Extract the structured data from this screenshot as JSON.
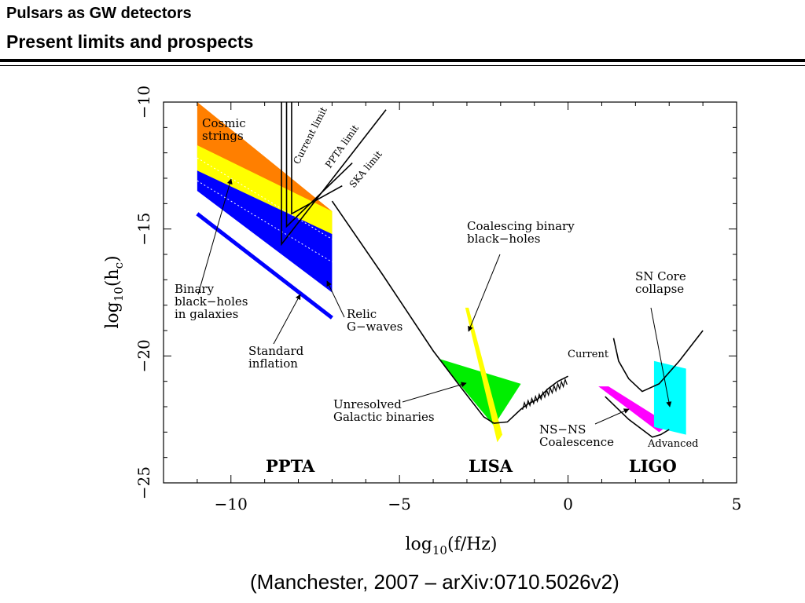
{
  "header": {
    "line1": "Pulsars as GW detectors",
    "line2": "Present limits and prospects"
  },
  "citation": "(Manchester, 2007 – arXiv:0710.5026v2)",
  "chart_data": {
    "type": "area",
    "xlabel": "log10(f/Hz)",
    "ylabel": "log10(hc)",
    "xlim": [
      -12,
      5
    ],
    "ylim": [
      -25,
      -10
    ],
    "x_ticks": [
      -10,
      -5,
      0,
      5
    ],
    "x_tick_labels": [
      "−10",
      "−5",
      "0",
      "5"
    ],
    "y_ticks": [
      -10,
      -15,
      -20,
      -25
    ],
    "y_tick_labels": [
      "−10",
      "−15",
      "−20",
      "−25"
    ],
    "grid": false,
    "colors": {
      "cosmic_strings": "#ff7f00",
      "relic_gwaves": "#ffff00",
      "binary_bh_galaxies": "#0000ff",
      "standard_inflation": "#0000ff",
      "lisa_galactic": "#00ee00",
      "coalescing_bbh": "#ffff00",
      "ns_ns": "#ff00ff",
      "sn_core": "#00ffff"
    },
    "regions": [
      {
        "name": "Cosmic strings",
        "color": "#ff7f00",
        "polygon": [
          [
            -11,
            -10
          ],
          [
            -7,
            -14.3
          ],
          [
            -7,
            -15.4
          ],
          [
            -11,
            -12.2
          ]
        ]
      },
      {
        "name": "Relic G-waves",
        "color": "#ffff00",
        "polygon": [
          [
            -11,
            -11.7
          ],
          [
            -7,
            -14.3
          ],
          [
            -7,
            -15.4
          ],
          [
            -11,
            -13.1
          ]
        ]
      },
      {
        "name": "Binary black-holes in galaxies",
        "color": "#0000ff",
        "polygon": [
          [
            -11,
            -12.7
          ],
          [
            -7,
            -15.2
          ],
          [
            -7,
            -17.5
          ],
          [
            -11,
            -13.5
          ]
        ]
      },
      {
        "name": "Unresolved Galactic binaries",
        "color": "#00ee00",
        "polygon": [
          [
            -3.85,
            -20.1
          ],
          [
            -1.4,
            -21.1
          ],
          [
            -2.2,
            -22.75
          ]
        ]
      },
      {
        "name": "Coalescing binary black-holes",
        "color": "#ffff00",
        "polygon": [
          [
            -3.05,
            -18.1
          ],
          [
            -2.95,
            -18.1
          ],
          [
            -1.95,
            -23.1
          ],
          [
            -2.1,
            -23.4
          ]
        ]
      },
      {
        "name": "NS-NS Coalescence",
        "color": "#ff00ff",
        "polygon": [
          [
            0.9,
            -21.2
          ],
          [
            1.2,
            -21.2
          ],
          [
            3.0,
            -22.7
          ],
          [
            2.7,
            -23.0
          ]
        ]
      },
      {
        "name": "SN Core collapse",
        "color": "#00ffff",
        "polygon": [
          [
            2.55,
            -20.2
          ],
          [
            3.5,
            -20.5
          ],
          [
            3.5,
            -23.1
          ],
          [
            2.55,
            -22.8
          ]
        ]
      }
    ],
    "lines": [
      {
        "name": "Standard inflation",
        "color": "#0000ff",
        "points": [
          [
            -11,
            -14.4
          ],
          [
            -7,
            -18.5
          ]
        ]
      },
      {
        "name": "Current limit",
        "color": "#000000",
        "points": [
          [
            -8.5,
            -10
          ],
          [
            -8.5,
            -15.6
          ],
          [
            -5.4,
            -10.3
          ]
        ]
      },
      {
        "name": "PPTA limit",
        "color": "#000000",
        "points": [
          [
            -8.35,
            -10
          ],
          [
            -8.35,
            -14.9
          ],
          [
            -6.4,
            -12.4
          ]
        ]
      },
      {
        "name": "SKA limit",
        "color": "#000000",
        "points": [
          [
            -8.2,
            -10
          ],
          [
            -8.2,
            -14.4
          ],
          [
            -6.7,
            -13.3
          ]
        ]
      },
      {
        "name": "LISA sensitivity",
        "color": "#000000",
        "points": [
          [
            -7.0,
            -13.9
          ],
          [
            -5.5,
            -16.8
          ],
          [
            -4.0,
            -19.8
          ],
          [
            -3.2,
            -21.2
          ],
          [
            -2.5,
            -22.4
          ],
          [
            -2.2,
            -22.65
          ],
          [
            -1.8,
            -22.6
          ],
          [
            -1.4,
            -22.1
          ],
          [
            -1.2,
            -21.9
          ],
          [
            -0.9,
            -21.7
          ],
          [
            -0.6,
            -21.3
          ],
          [
            -0.3,
            -21.0
          ],
          [
            0,
            -20.8
          ]
        ]
      },
      {
        "name": "LIGO Current",
        "color": "#000000",
        "points": [
          [
            1.35,
            -19.3
          ],
          [
            1.5,
            -20.2
          ],
          [
            1.8,
            -20.9
          ],
          [
            2.2,
            -21.4
          ],
          [
            2.7,
            -21.1
          ],
          [
            3.3,
            -20.2
          ],
          [
            4.0,
            -19.0
          ]
        ]
      },
      {
        "name": "LIGO Advanced",
        "color": "#000000",
        "points": [
          [
            1.1,
            -21.6
          ],
          [
            1.8,
            -22.5
          ],
          [
            2.5,
            -23.2
          ],
          [
            2.75,
            -23.1
          ],
          [
            3.0,
            -22.9
          ]
        ]
      }
    ],
    "labels": {
      "cosmic_strings": [
        "Cosmic",
        "strings"
      ],
      "current_limit": "Current limit",
      "ppta_limit": "PPTA limit",
      "ska_limit": "SKA limit",
      "coalescing_bbh": [
        "Coalescing binary",
        "black−holes"
      ],
      "sn_core": [
        "SN Core",
        "collapse"
      ],
      "binary_bh": [
        "Binary",
        "black−holes",
        "in galaxies"
      ],
      "relic": [
        "Relic",
        "G−waves"
      ],
      "standard_inflation": [
        "Standard",
        "inflation"
      ],
      "current": "Current",
      "unresolved": [
        "Unresolved",
        "Galactic binaries"
      ],
      "ns_ns": [
        "NS−NS",
        "Coalescence"
      ],
      "advanced": "Advanced",
      "ppta": "PPTA",
      "lisa": "LISA",
      "ligo": "LIGO"
    }
  }
}
